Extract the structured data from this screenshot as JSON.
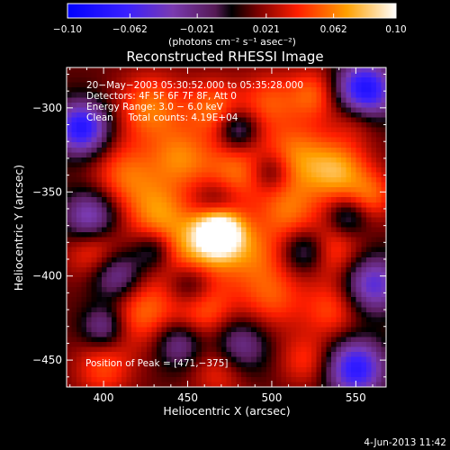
{
  "chart_data": {
    "type": "heatmap",
    "title": "Reconstructed RHESSI Image",
    "xlabel": "Heliocentric X (arcsec)",
    "ylabel": "Heliocentric Y (arcsec)",
    "xlim": [
      378,
      568
    ],
    "ylim": [
      -466,
      -276
    ],
    "x_ticks": [
      400,
      450,
      500,
      550
    ],
    "y_ticks": [
      -300,
      -350,
      -400,
      -450
    ],
    "x_tick_labels": [
      "400",
      "450",
      "500",
      "550"
    ],
    "y_tick_labels": [
      "−300",
      "−350",
      "−400",
      "−450"
    ],
    "colorbar": {
      "range": [
        -0.1,
        0.1
      ],
      "ticks": [
        -0.1,
        -0.062,
        -0.021,
        0.021,
        0.062,
        0.1
      ],
      "tick_labels": [
        "−0.10",
        "−0.062",
        "−0.021",
        "0.021",
        "0.062",
        "0.10"
      ],
      "unit_label": "(photons cm⁻² s⁻¹ asec⁻²)"
    },
    "info_lines": [
      "20−May−2003 05:30:52.000 to 05:35:28.000",
      "Detectors: 4F 5F 6F 7F 8F, Att 0",
      "Energy Range: 3.0 − 6.0 keV",
      "Clean     Total counts: 4.19E+04"
    ],
    "peak_label": "Position of Peak = [471,−375]",
    "peak": {
      "x": 471,
      "y": -375,
      "value": 0.1
    },
    "grid": false,
    "colormap": "rhessi-blue-purple-red-yellow-white",
    "blobs": [
      {
        "x": 469,
        "y": -373,
        "r": 10,
        "v": 0.1
      },
      {
        "x": 455,
        "y": -385,
        "r": 16,
        "v": 0.055
      },
      {
        "x": 488,
        "y": -386,
        "r": 13,
        "v": 0.035
      },
      {
        "x": 432,
        "y": -362,
        "r": 13,
        "v": 0.045
      },
      {
        "x": 413,
        "y": -340,
        "r": 14,
        "v": 0.042
      },
      {
        "x": 446,
        "y": -330,
        "r": 13,
        "v": 0.045
      },
      {
        "x": 478,
        "y": -340,
        "r": 14,
        "v": 0.045
      },
      {
        "x": 513,
        "y": -330,
        "r": 15,
        "v": 0.05
      },
      {
        "x": 540,
        "y": -338,
        "r": 13,
        "v": 0.055
      },
      {
        "x": 560,
        "y": -352,
        "r": 10,
        "v": 0.035
      },
      {
        "x": 510,
        "y": -362,
        "r": 13,
        "v": 0.04
      },
      {
        "x": 537,
        "y": -385,
        "r": 12,
        "v": 0.035
      },
      {
        "x": 428,
        "y": -300,
        "r": 14,
        "v": 0.048
      },
      {
        "x": 465,
        "y": -300,
        "r": 12,
        "v": 0.042
      },
      {
        "x": 525,
        "y": -292,
        "r": 11,
        "v": 0.04
      },
      {
        "x": 550,
        "y": -305,
        "r": 10,
        "v": 0.03
      },
      {
        "x": 498,
        "y": -296,
        "r": 12,
        "v": 0.035
      },
      {
        "x": 395,
        "y": -385,
        "r": 12,
        "v": 0.04
      },
      {
        "x": 423,
        "y": -420,
        "r": 15,
        "v": 0.045
      },
      {
        "x": 460,
        "y": -420,
        "r": 13,
        "v": 0.042
      },
      {
        "x": 500,
        "y": -412,
        "r": 14,
        "v": 0.038
      },
      {
        "x": 536,
        "y": -420,
        "r": 12,
        "v": 0.035
      },
      {
        "x": 470,
        "y": -455,
        "r": 12,
        "v": 0.035
      },
      {
        "x": 520,
        "y": -450,
        "r": 11,
        "v": 0.03
      },
      {
        "x": 400,
        "y": -455,
        "r": 12,
        "v": 0.035
      },
      {
        "x": 468,
        "y": -357,
        "r": 10,
        "v": -0.035
      },
      {
        "x": 387,
        "y": -312,
        "r": 11,
        "v": -0.09
      },
      {
        "x": 555,
        "y": -290,
        "r": 12,
        "v": -0.1
      },
      {
        "x": 480,
        "y": -313,
        "r": 8,
        "v": -0.045
      },
      {
        "x": 392,
        "y": -365,
        "r": 11,
        "v": -0.06
      },
      {
        "x": 452,
        "y": -405,
        "r": 10,
        "v": -0.045
      },
      {
        "x": 408,
        "y": -400,
        "r": 11,
        "v": -0.055
      },
      {
        "x": 480,
        "y": -442,
        "r": 12,
        "v": -0.05
      },
      {
        "x": 550,
        "y": -455,
        "r": 12,
        "v": -0.085
      },
      {
        "x": 560,
        "y": -405,
        "r": 12,
        "v": -0.065
      },
      {
        "x": 520,
        "y": -385,
        "r": 9,
        "v": -0.04
      },
      {
        "x": 445,
        "y": -440,
        "r": 10,
        "v": -0.045
      },
      {
        "x": 500,
        "y": -338,
        "r": 9,
        "v": -0.04
      },
      {
        "x": 545,
        "y": -365,
        "r": 8,
        "v": -0.035
      },
      {
        "x": 430,
        "y": -385,
        "r": 8,
        "v": -0.035
      },
      {
        "x": 400,
        "y": -430,
        "r": 9,
        "v": -0.045
      }
    ]
  },
  "footer": {
    "timestamp": "4-Jun-2013 11:42"
  }
}
